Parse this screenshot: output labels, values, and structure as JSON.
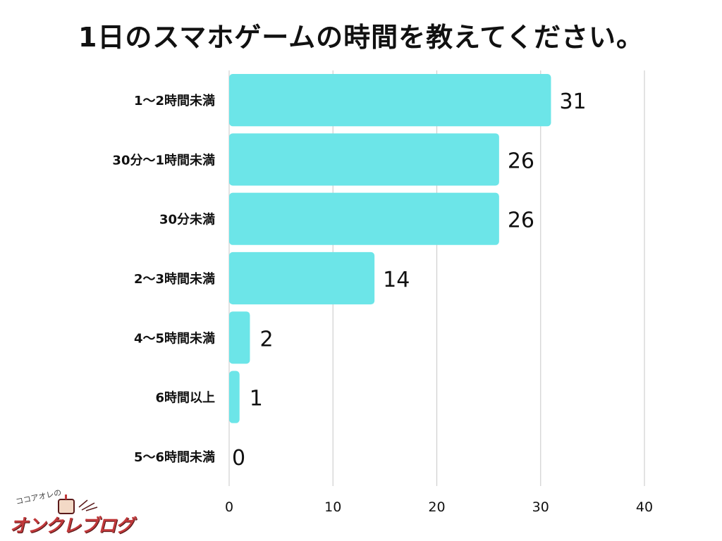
{
  "title": "1日のスマホゲームの時間を教えてください。",
  "logo": {
    "small_text": "ココアオレの",
    "main_text": "オンクレブログ"
  },
  "colors": {
    "bar": "#6ce5e8",
    "grid": "#d0d0d0",
    "text": "#111111"
  },
  "chart_data": {
    "type": "bar",
    "orientation": "horizontal",
    "title": "1日のスマホゲームの時間を教えてください。",
    "categories": [
      "1〜2時間未満",
      "30分〜1時間未満",
      "30分未満",
      "2〜3時間未満",
      "4〜5時間未満",
      "6時間以上",
      "5〜6時間未満"
    ],
    "values": [
      31,
      26,
      26,
      14,
      2,
      1,
      0
    ],
    "xlabel": "",
    "ylabel": "",
    "xlim": [
      0,
      40
    ],
    "xticks": [
      0,
      10,
      20,
      30,
      40
    ],
    "grid": true,
    "data_labels": true
  }
}
